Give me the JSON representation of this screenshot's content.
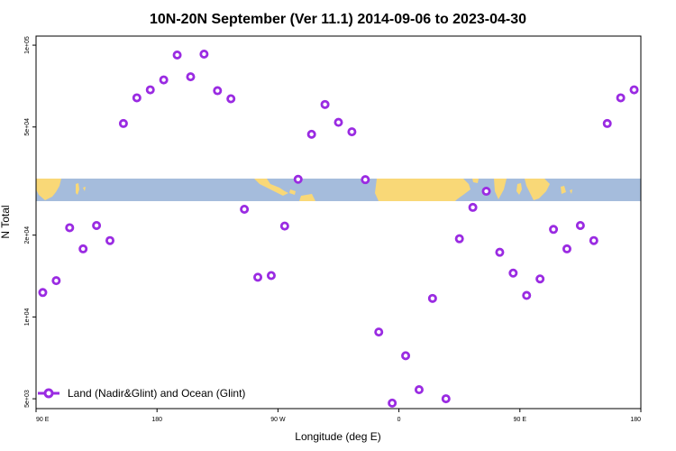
{
  "chart_data": {
    "type": "scatter",
    "title": "10N-20N September (Ver 11.1)   2014-09-06 to 2023-04-30",
    "xlabel": "Longitude (deg E)",
    "ylabel": "N Total",
    "x_ticks": [
      {
        "value": 90,
        "label": "90 E"
      },
      {
        "value": 180,
        "label": "180"
      },
      {
        "value": 270,
        "label": "90 W"
      },
      {
        "value": 360,
        "label": "0"
      },
      {
        "value": 450,
        "label": "90 E"
      },
      {
        "value": 540,
        "label": "180"
      }
    ],
    "y_scale": "log",
    "y_ticks": [
      {
        "value": 5000,
        "label": "5e+03"
      },
      {
        "value": 10000,
        "label": "1e+04"
      },
      {
        "value": 20000,
        "label": "2e+04"
      },
      {
        "value": 50000,
        "label": "5e+04"
      },
      {
        "value": 100000,
        "label": "1e+05"
      }
    ],
    "xlim": [
      90,
      540
    ],
    "ylim": [
      4600,
      108000
    ],
    "grid": false,
    "legend": {
      "position": "bottom-left"
    },
    "series": [
      {
        "name": "Land (Nadir&Glint) and Ocean (Glint)",
        "color": "#9a2be2",
        "points": [
          {
            "x": 95,
            "y": 12300
          },
          {
            "x": 105,
            "y": 13600
          },
          {
            "x": 115,
            "y": 21300
          },
          {
            "x": 125,
            "y": 17800
          },
          {
            "x": 135,
            "y": 21700
          },
          {
            "x": 145,
            "y": 19100
          },
          {
            "x": 155,
            "y": 51500
          },
          {
            "x": 165,
            "y": 64000
          },
          {
            "x": 175,
            "y": 68500
          },
          {
            "x": 185,
            "y": 74500
          },
          {
            "x": 195,
            "y": 92000
          },
          {
            "x": 205,
            "y": 76500
          },
          {
            "x": 215,
            "y": 92700
          },
          {
            "x": 225,
            "y": 68000
          },
          {
            "x": 235,
            "y": 63500
          },
          {
            "x": 245,
            "y": 24900
          },
          {
            "x": 255,
            "y": 14000
          },
          {
            "x": 265,
            "y": 14200
          },
          {
            "x": 275,
            "y": 21600
          },
          {
            "x": 285,
            "y": 32100
          },
          {
            "x": 295,
            "y": 47000
          },
          {
            "x": 305,
            "y": 60500
          },
          {
            "x": 315,
            "y": 52000
          },
          {
            "x": 325,
            "y": 48000
          },
          {
            "x": 335,
            "y": 32000
          },
          {
            "x": 345,
            "y": 8800
          },
          {
            "x": 355,
            "y": 4820
          },
          {
            "x": 365,
            "y": 7200
          },
          {
            "x": 375,
            "y": 5400
          },
          {
            "x": 385,
            "y": 11700
          },
          {
            "x": 395,
            "y": 5000
          },
          {
            "x": 405,
            "y": 19400
          },
          {
            "x": 415,
            "y": 25300
          },
          {
            "x": 425,
            "y": 29000
          },
          {
            "x": 435,
            "y": 17300
          },
          {
            "x": 445,
            "y": 14500
          },
          {
            "x": 455,
            "y": 12000
          },
          {
            "x": 465,
            "y": 13800
          },
          {
            "x": 475,
            "y": 21000
          },
          {
            "x": 485,
            "y": 17800
          },
          {
            "x": 495,
            "y": 21700
          },
          {
            "x": 505,
            "y": 19100
          },
          {
            "x": 515,
            "y": 51500
          },
          {
            "x": 525,
            "y": 64000
          },
          {
            "x": 535,
            "y": 68500
          }
        ]
      }
    ]
  }
}
